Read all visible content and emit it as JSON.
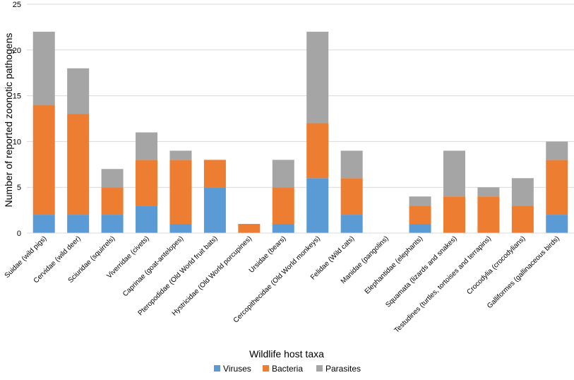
{
  "chart_data": {
    "type": "bar",
    "stacked": true,
    "title": "",
    "xlabel": "Wildlife host taxa",
    "ylabel": "Number of reported zoonotic pathogens",
    "ylim": [
      0,
      25
    ],
    "yticks": [
      0,
      5,
      10,
      15,
      20,
      25
    ],
    "grid": true,
    "legend_position": "bottom",
    "categories": [
      "Suidae (wild pigs)",
      "Cervidae (wild deer)",
      "Sciuridae (squirrels)",
      "Viverridae (civets)",
      "Caprinae (goat-antelopes)",
      "Pteropodidae (Old World fruit bats)",
      "Hystricidae (Old World porcupines)",
      "Ursidae (bears)",
      "Cercopithecidae (Old World monkeys)",
      "Felidae (Wild cats)",
      "Manidae (pangolins)",
      "Elephantidae (elephants)",
      "Squamata (lizards and snakes)",
      "Testudines (turtles, tortoises and terrapins)",
      "Crocodylia (crocodylians)",
      "Galliformes (gallinaceous birds)"
    ],
    "series": [
      {
        "name": "Viruses",
        "color": "#5B9BD5",
        "values": [
          2,
          2,
          2,
          3,
          1,
          5,
          0,
          1,
          6,
          2,
          0,
          1,
          0,
          0,
          0,
          2
        ]
      },
      {
        "name": "Bacteria",
        "color": "#ED7D31",
        "values": [
          12,
          11,
          3,
          5,
          7,
          3,
          1,
          4,
          6,
          4,
          0,
          2,
          4,
          4,
          3,
          6
        ]
      },
      {
        "name": "Parasites",
        "color": "#A5A5A5",
        "values": [
          8,
          5,
          2,
          3,
          1,
          0,
          0,
          3,
          10,
          3,
          0,
          1,
          5,
          1,
          3,
          2
        ]
      }
    ]
  }
}
